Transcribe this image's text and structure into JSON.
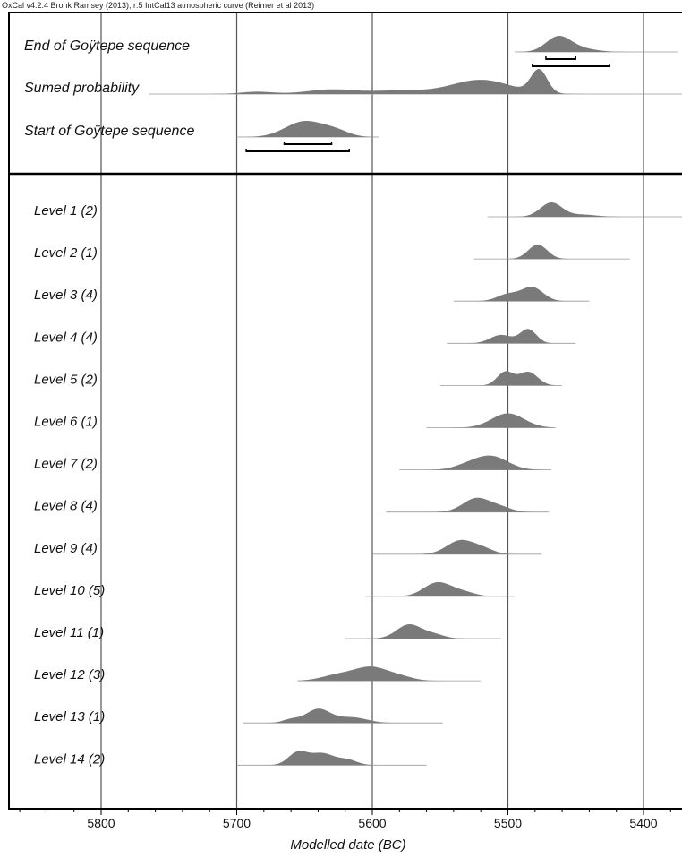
{
  "header": {
    "text": "OxCal v4.2.4 Bronk Ramsey (2013); r:5 IntCal13 atmospheric curve (Reimer et al 2013)"
  },
  "chart_data": {
    "type": "area",
    "xlabel": "Modelled date (BC)",
    "xlim": [
      5860,
      5370
    ],
    "x_ticks": [
      5800,
      5700,
      5600,
      5500,
      5400
    ],
    "colors": {
      "fill": "#7a7a7a",
      "axis": "#000000",
      "grid": "#555555",
      "label": "#111111"
    },
    "phase_panel": [
      {
        "name": "End of Goÿtepe sequence",
        "range": [
          5495,
          5375
        ],
        "peaks": [
          [
            5463,
            9,
            1.0
          ],
          [
            5448,
            12,
            0.25
          ]
        ],
        "brackets": [
          [
            5472,
            5450
          ],
          [
            5482,
            5425
          ]
        ]
      },
      {
        "name": "Sumed probability",
        "range": [
          5765,
          5370
        ],
        "peaks": [
          [
            5477,
            6,
            1.0
          ],
          [
            5520,
            22,
            0.62
          ],
          [
            5630,
            18,
            0.2
          ],
          [
            5580,
            20,
            0.15
          ],
          [
            5685,
            12,
            0.1
          ]
        ],
        "brackets": []
      },
      {
        "name": "Start of Goÿtepe sequence",
        "range": [
          5700,
          5595
        ],
        "peaks": [
          [
            5650,
            14,
            1.0
          ],
          [
            5627,
            10,
            0.35
          ]
        ],
        "brackets": [
          [
            5665,
            5630
          ],
          [
            5693,
            5617
          ]
        ]
      }
    ],
    "levels": [
      {
        "name": "Level 1 (2)",
        "range": [
          5515,
          5370
        ],
        "peaks": [
          [
            5468,
            8,
            1.0
          ],
          [
            5445,
            10,
            0.15
          ]
        ]
      },
      {
        "name": "Level 2 (1)",
        "range": [
          5525,
          5410
        ],
        "peaks": [
          [
            5478,
            7,
            1.0
          ]
        ]
      },
      {
        "name": "Level 3 (4)",
        "range": [
          5540,
          5440
        ],
        "peaks": [
          [
            5482,
            8,
            1.0
          ],
          [
            5500,
            8,
            0.5
          ]
        ]
      },
      {
        "name": "Level 4 (4)",
        "range": [
          5545,
          5450
        ],
        "peaks": [
          [
            5485,
            6,
            1.0
          ],
          [
            5505,
            8,
            0.6
          ]
        ]
      },
      {
        "name": "Level 5 (2)",
        "range": [
          5550,
          5460
        ],
        "peaks": [
          [
            5502,
            6,
            1.0
          ],
          [
            5485,
            7,
            1.0
          ]
        ]
      },
      {
        "name": "Level 6 (1)",
        "range": [
          5560,
          5465
        ],
        "peaks": [
          [
            5500,
            12,
            1.0
          ]
        ]
      },
      {
        "name": "Level 7 (2)",
        "range": [
          5580,
          5468
        ],
        "peaks": [
          [
            5512,
            12,
            1.0
          ],
          [
            5530,
            10,
            0.3
          ]
        ]
      },
      {
        "name": "Level 8 (4)",
        "range": [
          5590,
          5470
        ],
        "peaks": [
          [
            5523,
            10,
            1.0
          ],
          [
            5505,
            8,
            0.3
          ]
        ]
      },
      {
        "name": "Level 9 (4)",
        "range": [
          5600,
          5475
        ],
        "peaks": [
          [
            5535,
            10,
            1.0
          ],
          [
            5518,
            8,
            0.35
          ]
        ]
      },
      {
        "name": "Level 10 (5)",
        "range": [
          5605,
          5495
        ],
        "peaks": [
          [
            5552,
            10,
            1.0
          ],
          [
            5533,
            9,
            0.3
          ]
        ]
      },
      {
        "name": "Level 11 (1)",
        "range": [
          5620,
          5505
        ],
        "peaks": [
          [
            5573,
            9,
            1.0
          ],
          [
            5555,
            8,
            0.3
          ]
        ]
      },
      {
        "name": "Level 12 (3)",
        "range": [
          5655,
          5520
        ],
        "peaks": [
          [
            5601,
            12,
            1.0
          ],
          [
            5625,
            12,
            0.45
          ],
          [
            5580,
            10,
            0.3
          ]
        ]
      },
      {
        "name": "Level 13 (1)",
        "range": [
          5695,
          5548
        ],
        "peaks": [
          [
            5640,
            9,
            1.0
          ],
          [
            5615,
            11,
            0.4
          ],
          [
            5660,
            6,
            0.25
          ]
        ]
      },
      {
        "name": "Level 14 (2)",
        "range": [
          5700,
          5560
        ],
        "peaks": [
          [
            5655,
            7,
            1.0
          ],
          [
            5637,
            9,
            0.95
          ],
          [
            5618,
            7,
            0.4
          ]
        ]
      }
    ]
  }
}
